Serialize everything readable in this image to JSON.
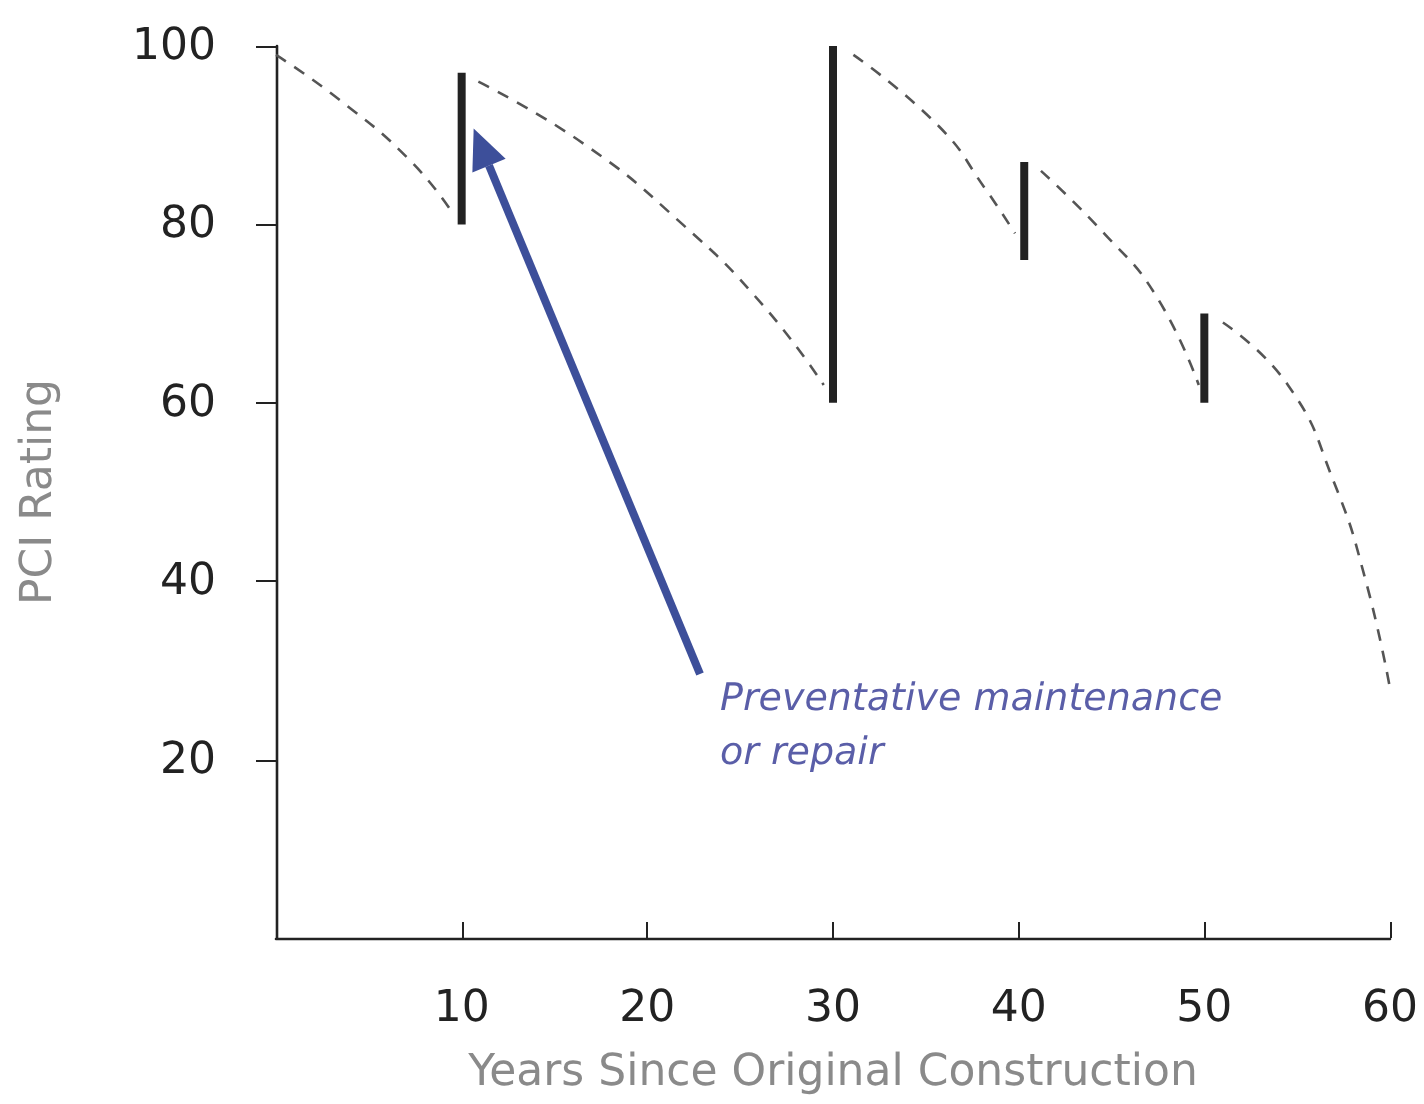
{
  "chart_data": {
    "type": "line",
    "xlabel": "Years Since Original Construction",
    "ylabel": "PCI Rating",
    "xlim": [
      0,
      60
    ],
    "xticks": [
      10,
      20,
      30,
      40,
      50,
      60
    ],
    "ylim": [
      0,
      100
    ],
    "yticks": [
      20,
      40,
      60,
      80,
      100
    ],
    "grid": false,
    "marker": "none",
    "annotations": [
      "Preventative maintenance\nor repair"
    ],
    "series": [
      {
        "color": "#555555",
        "line_style": "dashed",
        "x": [
          0,
          3.4,
          7.3,
          9.6
        ],
        "values": [
          99,
          94,
          87,
          81
        ]
      },
      {
        "color": "#222222",
        "line_style": "solid",
        "x": [
          10,
          10
        ],
        "values": [
          80,
          97
        ]
      },
      {
        "color": "#555555",
        "line_style": "dashed",
        "x": [
          10.9,
          16.6,
          21.9,
          26.2,
          29.5
        ],
        "values": [
          96,
          89,
          80,
          71,
          62
        ]
      },
      {
        "color": "#222222",
        "line_style": "solid",
        "x": [
          30,
          30
        ],
        "values": [
          60,
          100
        ]
      },
      {
        "color": "#555555",
        "line_style": "dashed",
        "x": [
          31.1,
          35.7,
          38.2,
          39.8
        ],
        "values": [
          99,
          91,
          84,
          79
        ]
      },
      {
        "color": "#222222",
        "line_style": "solid",
        "x": [
          40.3,
          40.3
        ],
        "values": [
          76,
          87
        ]
      },
      {
        "color": "#555555",
        "line_style": "dashed",
        "x": [
          41.2,
          44.6,
          47.4,
          49.7
        ],
        "values": [
          86,
          79,
          72,
          62
        ]
      },
      {
        "color": "#222222",
        "line_style": "solid",
        "x": [
          50,
          50
        ],
        "values": [
          60,
          70
        ]
      },
      {
        "color": "#555555",
        "line_style": "dashed",
        "x": [
          51,
          54.5,
          57,
          58.7,
          60
        ],
        "values": [
          69,
          62,
          51,
          40,
          28
        ]
      }
    ]
  }
}
